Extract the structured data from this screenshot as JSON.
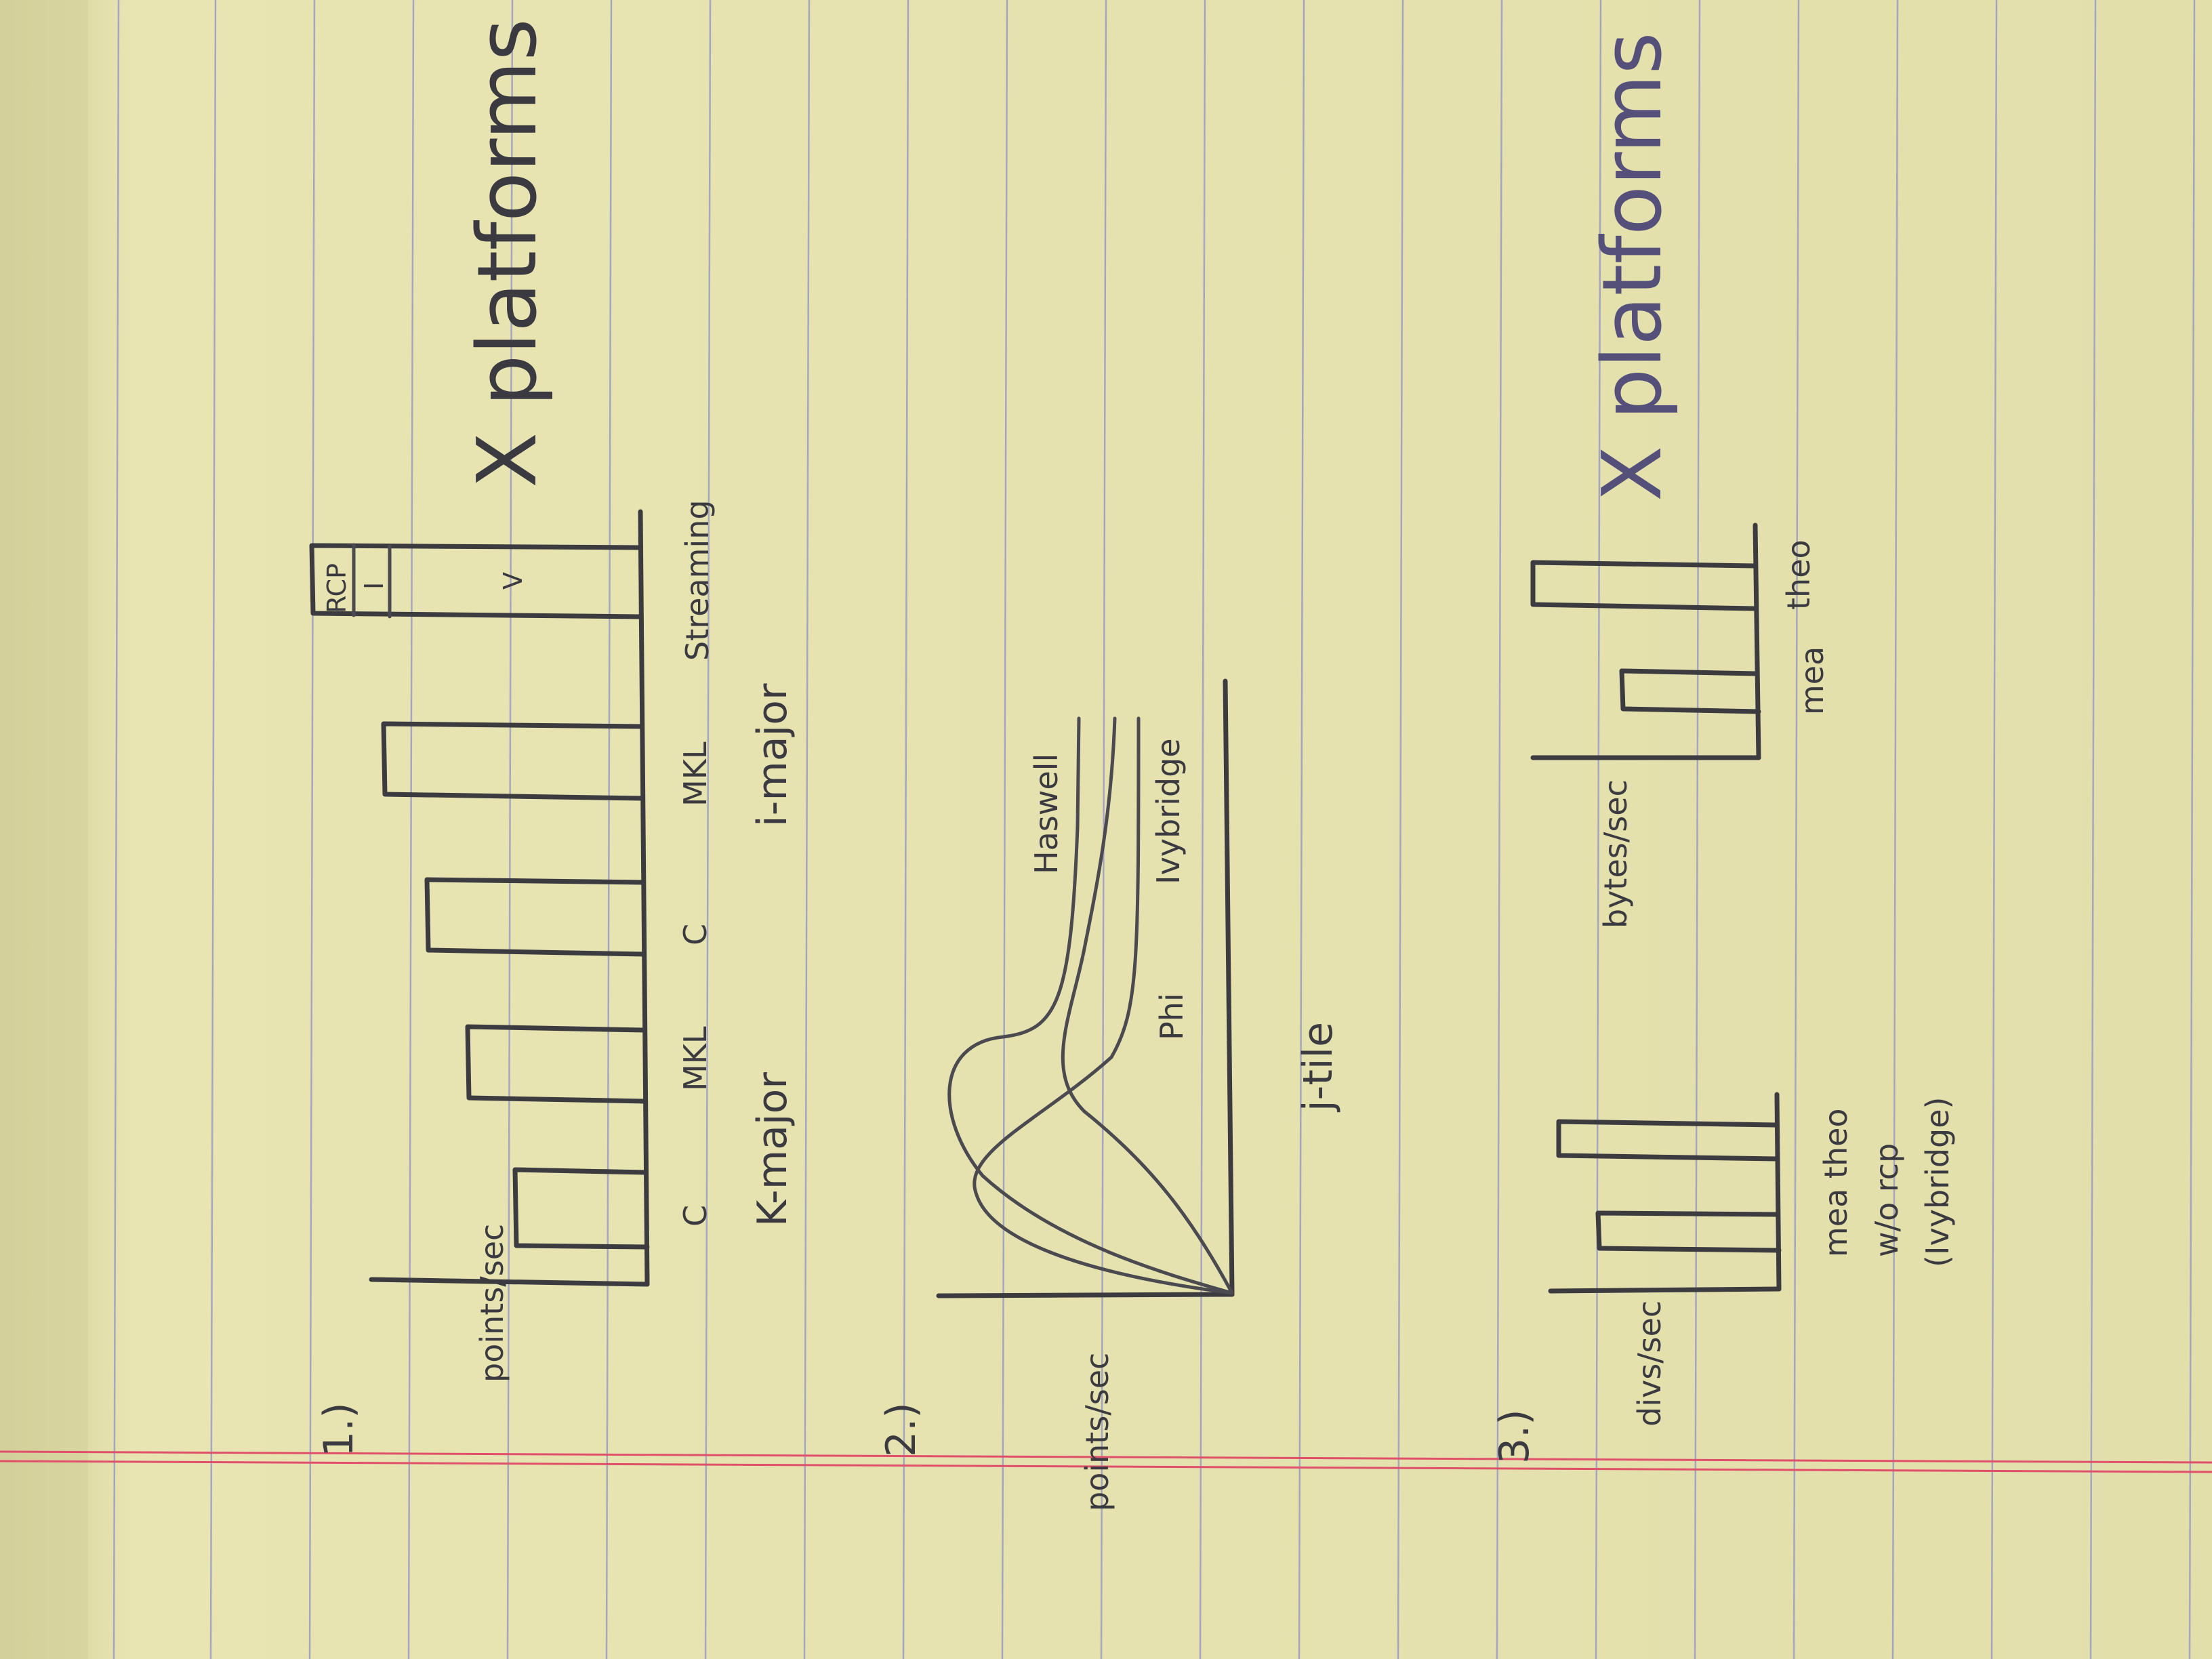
{
  "page": {
    "background": "#e6e3b0",
    "ink_color": "#3b3b40",
    "rule_color": "#8f93c6",
    "margin_color": "#e0506a"
  },
  "sketch1": {
    "number": "1.)",
    "ylabel": "points/sec",
    "caption": "X platforms",
    "bar_labels": [
      "C",
      "MKL",
      "C",
      "MKL",
      "Streaming"
    ],
    "group_labels": [
      "K-major",
      "i-major"
    ],
    "stack_top": "RCP",
    "stack_mid": "I",
    "stack_bottom": "V"
  },
  "sketch2": {
    "number": "2.)",
    "ylabel": "points/sec",
    "xlabel": "j-tile",
    "series_labels": [
      "Haswell",
      "Phi",
      "Ivybridge"
    ]
  },
  "sketch3": {
    "number": "3.)",
    "left_ylabel": "divs/sec",
    "left_caption_lines": [
      "mea theo",
      "w/o rcp",
      "(Ivybridge)"
    ],
    "right_ylabel": "bytes/sec",
    "right_labels": [
      "mea",
      "theo"
    ],
    "caption": "X platforms"
  }
}
